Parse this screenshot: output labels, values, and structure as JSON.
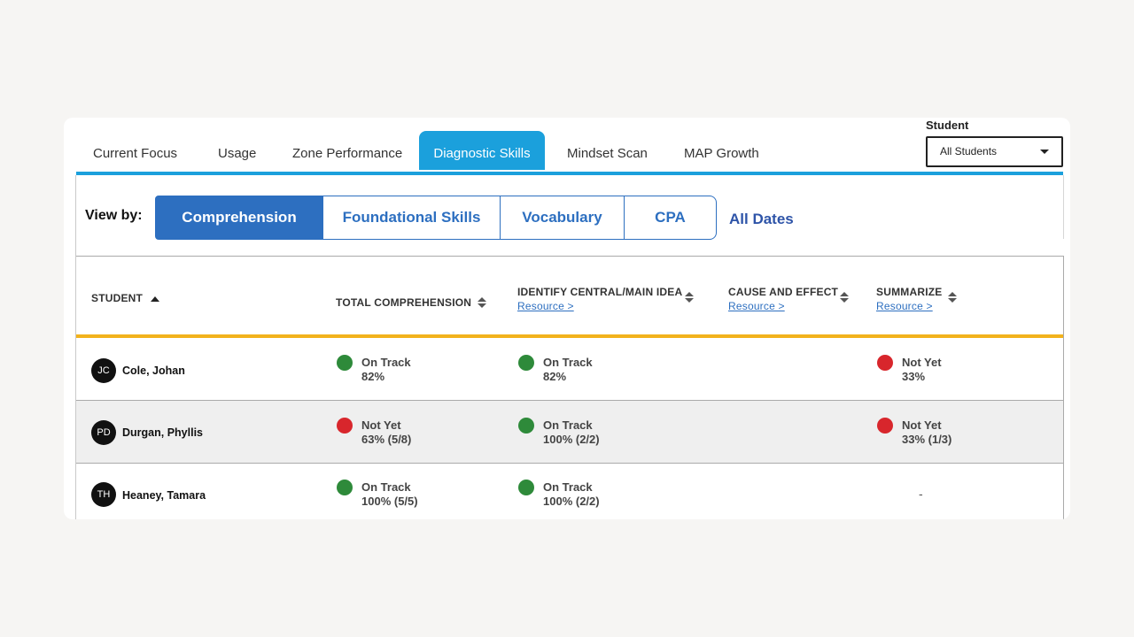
{
  "tabs": [
    {
      "label": "Current Focus"
    },
    {
      "label": "Usage"
    },
    {
      "label": "Zone Performance"
    },
    {
      "label": "Diagnostic Skills"
    },
    {
      "label": "Mindset Scan"
    },
    {
      "label": "MAP Growth"
    }
  ],
  "active_tab": "Diagnostic Skills",
  "student_filter": {
    "label": "Student",
    "value": "All Students"
  },
  "view_by": {
    "label": "View by:",
    "options": [
      {
        "label": "Comprehension"
      },
      {
        "label": "Foundational Skills"
      },
      {
        "label": "Vocabulary"
      },
      {
        "label": "CPA"
      }
    ],
    "selected": "Comprehension",
    "dates_label": "All Dates"
  },
  "table": {
    "columns": {
      "student": "STUDENT",
      "total": "TOTAL COMPREHENSION",
      "central": "IDENTIFY CENTRAL/MAIN IDEA",
      "cause": "CAUSE AND EFFECT",
      "summarize": "SUMMARIZE",
      "resource_link": "Resource >"
    },
    "rows": [
      {
        "initials": "JC",
        "name": "Cole, Johan",
        "total": {
          "status": "On Track",
          "score": "82%",
          "color": "green"
        },
        "central": {
          "status": "On Track",
          "score": "82%",
          "color": "green"
        },
        "summarize": {
          "status": "Not Yet",
          "score": "33%",
          "color": "red"
        }
      },
      {
        "initials": "PD",
        "name": "Durgan, Phyllis",
        "total": {
          "status": "Not Yet",
          "score": "63% (5/8)",
          "color": "red"
        },
        "central": {
          "status": "On Track",
          "score": "100% (2/2)",
          "color": "green"
        },
        "summarize": {
          "status": "Not Yet",
          "score": "33% (1/3)",
          "color": "red"
        }
      },
      {
        "initials": "TH",
        "name": "Heaney, Tamara",
        "total": {
          "status": "On Track",
          "score": "100% (5/5)",
          "color": "green"
        },
        "central": {
          "status": "On Track",
          "score": "100% (2/2)",
          "color": "green"
        },
        "summarize": {
          "empty": "-"
        }
      }
    ]
  },
  "colors": {
    "tab_accent": "#1ba0dc",
    "primary": "#2d6fc0",
    "header_rule": "#f2b21c",
    "on_track": "#2e8a3a",
    "not_yet": "#d8262c"
  }
}
